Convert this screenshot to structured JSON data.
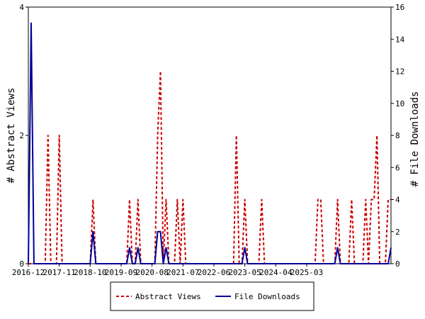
{
  "chart_data": {
    "type": "line",
    "x_labels": [
      "2016-12",
      "2017-11",
      "2018-10",
      "2019-09",
      "2020-08",
      "2021-07",
      "2022-06",
      "2023-05",
      "2024-04",
      "2025-03"
    ],
    "y_left": {
      "label": "# Abstract Views",
      "ylim": [
        0,
        4
      ],
      "ticks": [
        0,
        2,
        4
      ]
    },
    "y_right": {
      "label": "# File Downloads",
      "ylim": [
        0,
        16
      ],
      "ticks": [
        0,
        2,
        4,
        6,
        8,
        10,
        12,
        14,
        16
      ]
    },
    "series": [
      {
        "name": "Abstract Views",
        "axis": "left",
        "color": "#cc0000",
        "style": "dashed",
        "values": [
          0,
          0,
          0,
          0,
          0,
          0,
          0,
          2,
          0,
          0,
          0,
          2,
          0,
          0,
          0,
          0,
          0,
          0,
          0,
          0,
          0,
          0,
          0,
          1,
          0,
          0,
          0,
          0,
          0,
          0,
          0,
          0,
          0,
          0,
          0,
          0,
          1,
          0,
          0,
          1,
          0,
          0,
          0,
          0,
          0,
          0,
          2,
          3,
          0,
          1,
          0,
          0,
          0,
          1,
          0,
          1,
          0,
          0,
          0,
          0,
          0,
          0,
          0,
          0,
          0,
          0,
          0,
          0,
          0,
          0,
          0,
          0,
          0,
          0,
          2,
          0,
          0,
          1,
          0,
          0,
          0,
          0,
          0,
          1,
          0,
          0,
          0,
          0,
          0,
          0,
          0,
          0,
          0,
          0,
          0,
          0,
          0,
          0,
          0,
          0,
          0,
          0,
          0,
          1,
          1,
          0,
          0,
          0,
          0,
          0,
          1,
          0,
          0,
          0,
          0,
          1,
          0,
          0,
          0,
          0,
          1,
          0,
          1,
          1,
          2,
          0,
          0,
          0,
          1,
          1
        ]
      },
      {
        "name": "File Downloads",
        "axis": "right",
        "color": "#000099",
        "style": "solid",
        "values": [
          0,
          15,
          0,
          0,
          0,
          0,
          0,
          0,
          0,
          0,
          0,
          0,
          0,
          0,
          0,
          0,
          0,
          0,
          0,
          0,
          0,
          0,
          0,
          2,
          0,
          0,
          0,
          0,
          0,
          0,
          0,
          0,
          0,
          0,
          0,
          0,
          1,
          0,
          0,
          1,
          0,
          0,
          0,
          0,
          0,
          0,
          2,
          2,
          0,
          1,
          0,
          0,
          0,
          0,
          0,
          0,
          0,
          0,
          0,
          0,
          0,
          0,
          0,
          0,
          0,
          0,
          0,
          0,
          0,
          0,
          0,
          0,
          0,
          0,
          0,
          0,
          0,
          1,
          0,
          0,
          0,
          0,
          0,
          0,
          0,
          0,
          0,
          0,
          0,
          0,
          0,
          0,
          0,
          0,
          0,
          0,
          0,
          0,
          0,
          0,
          0,
          0,
          0,
          0,
          0,
          0,
          0,
          0,
          0,
          0,
          1,
          0,
          0,
          0,
          0,
          0,
          0,
          0,
          0,
          0,
          0,
          0,
          0,
          0,
          0,
          0,
          0,
          0,
          0,
          1
        ]
      }
    ],
    "legend": {
      "placement": "bottom",
      "entries": [
        "Abstract Views",
        "File Downloads"
      ]
    },
    "grid": false
  }
}
